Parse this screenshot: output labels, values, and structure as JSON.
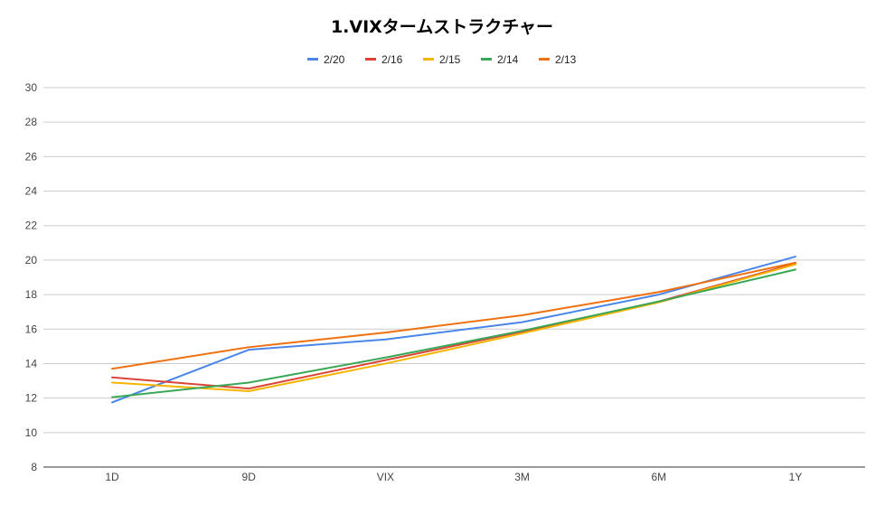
{
  "chart_data": {
    "type": "line",
    "title": "1.VIXタームストラクチャー",
    "xlabel": "",
    "ylabel": "",
    "categories": [
      "1D",
      "9D",
      "VIX",
      "3M",
      "6M",
      "1Y"
    ],
    "ylim": [
      8,
      30
    ],
    "yticks": [
      8,
      10,
      12,
      14,
      16,
      18,
      20,
      22,
      24,
      26,
      28,
      30
    ],
    "grid": true,
    "legend_position": "top",
    "series": [
      {
        "name": "2/20",
        "color": "#4a86e8",
        "values": [
          11.75,
          14.8,
          15.4,
          16.4,
          18.0,
          20.2
        ]
      },
      {
        "name": "2/16",
        "color": "#db4437",
        "values": [
          13.2,
          12.55,
          14.2,
          15.85,
          17.6,
          19.8
        ]
      },
      {
        "name": "2/15",
        "color": "#f4b400",
        "values": [
          12.9,
          12.4,
          14.0,
          15.75,
          17.55,
          19.75
        ]
      },
      {
        "name": "2/14",
        "color": "#3aa757",
        "values": [
          12.05,
          12.9,
          14.35,
          15.9,
          17.6,
          19.45
        ]
      },
      {
        "name": "2/13",
        "color": "#f07010",
        "values": [
          13.7,
          14.95,
          15.8,
          16.8,
          18.15,
          19.85
        ]
      }
    ]
  }
}
